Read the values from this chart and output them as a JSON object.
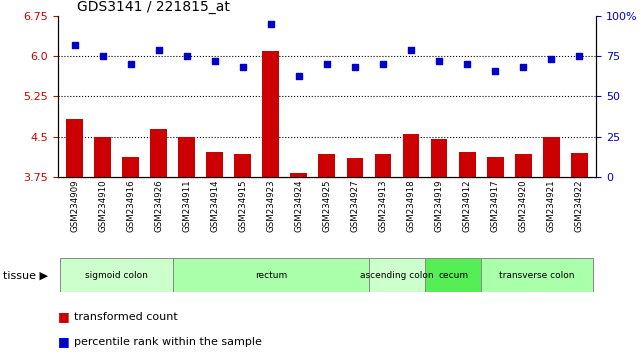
{
  "title": "GDS3141 / 221815_at",
  "samples": [
    "GSM234909",
    "GSM234910",
    "GSM234916",
    "GSM234926",
    "GSM234911",
    "GSM234914",
    "GSM234915",
    "GSM234923",
    "GSM234924",
    "GSM234925",
    "GSM234927",
    "GSM234913",
    "GSM234918",
    "GSM234919",
    "GSM234912",
    "GSM234917",
    "GSM234920",
    "GSM234921",
    "GSM234922"
  ],
  "bar_values": [
    4.83,
    4.5,
    4.12,
    4.65,
    4.5,
    4.22,
    4.18,
    6.1,
    3.83,
    4.18,
    4.1,
    4.18,
    4.55,
    4.45,
    4.22,
    4.12,
    4.18,
    4.5,
    4.2
  ],
  "dot_values": [
    82,
    75,
    70,
    79,
    75,
    72,
    68,
    95,
    63,
    70,
    68,
    70,
    79,
    72,
    70,
    66,
    68,
    73,
    75
  ],
  "bar_color": "#cc0000",
  "dot_color": "#0000cc",
  "ylim_left": [
    3.75,
    6.75
  ],
  "ylim_right": [
    0,
    100
  ],
  "yticks_left": [
    3.75,
    4.5,
    5.25,
    6.0,
    6.75
  ],
  "yticks_right": [
    0,
    25,
    50,
    75,
    100
  ],
  "hlines": [
    4.5,
    5.25,
    6.0
  ],
  "tissue_groups": [
    {
      "label": "sigmoid colon",
      "start": 0,
      "end": 4,
      "color": "#ccffcc"
    },
    {
      "label": "rectum",
      "start": 4,
      "end": 11,
      "color": "#aaffaa"
    },
    {
      "label": "ascending colon",
      "start": 11,
      "end": 13,
      "color": "#ccffcc"
    },
    {
      "label": "cecum",
      "start": 13,
      "end": 15,
      "color": "#55ee55"
    },
    {
      "label": "transverse colon",
      "start": 15,
      "end": 19,
      "color": "#aaffaa"
    }
  ],
  "legend_bar_label": "transformed count",
  "legend_dot_label": "percentile rank within the sample",
  "tissue_label": "tissue",
  "tick_bg_color": "#cccccc",
  "tick_line_color": "#aaaaaa",
  "fig_bg": "#ffffff"
}
